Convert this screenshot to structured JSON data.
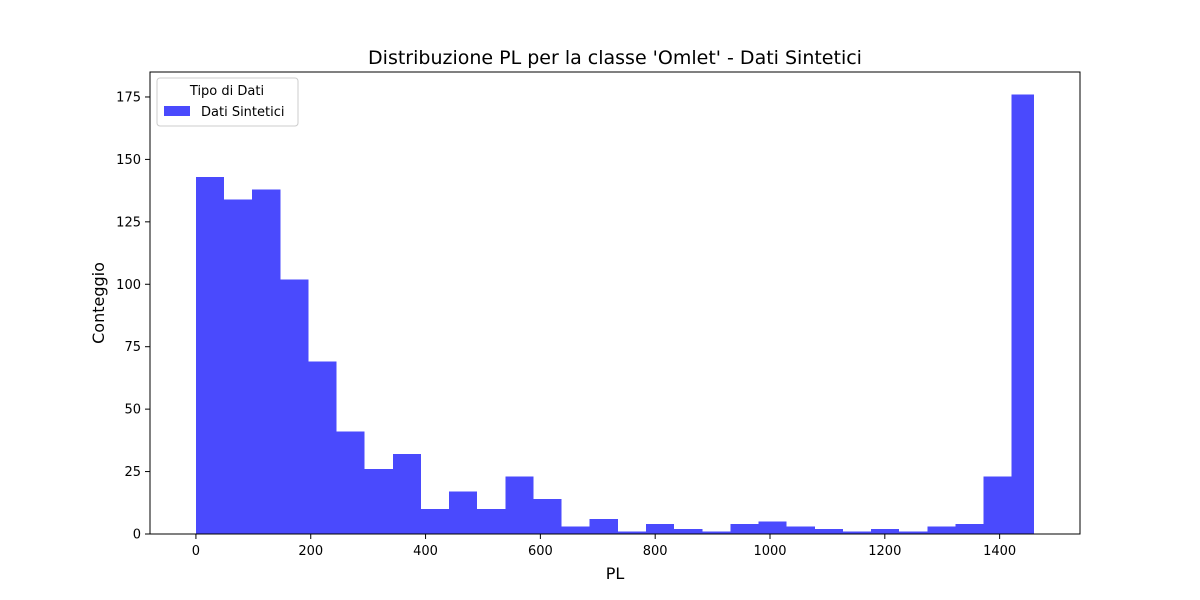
{
  "chart_data": {
    "type": "bar",
    "title": "Distribuzione PL per la classe 'Omlet' - Dati Sintetici",
    "xlabel": "PL",
    "ylabel": "Conteggio",
    "xlim": [
      -80,
      1540
    ],
    "ylim": [
      0,
      185
    ],
    "x_ticks": [
      0,
      200,
      400,
      600,
      800,
      1000,
      1200,
      1400
    ],
    "y_ticks": [
      0,
      25,
      50,
      75,
      100,
      125,
      150,
      175
    ],
    "grid": false,
    "legend": {
      "title": "Tipo di Dati",
      "placement": "top-left"
    },
    "series": [
      {
        "name": "Dati Sintetici",
        "color": "#4a4afd",
        "bin_edges": [
          0,
          49,
          98,
          147,
          196,
          245,
          294,
          343,
          392,
          441,
          490,
          539,
          588,
          637,
          686,
          735,
          784,
          833,
          882,
          931,
          980,
          1029,
          1078,
          1127,
          1176,
          1225,
          1274,
          1323,
          1372,
          1421,
          1460
        ],
        "counts": [
          143,
          134,
          138,
          102,
          69,
          41,
          26,
          32,
          10,
          17,
          10,
          23,
          14,
          3,
          6,
          1,
          4,
          2,
          1,
          4,
          5,
          3,
          2,
          1,
          2,
          1,
          3,
          4,
          23,
          176
        ]
      }
    ]
  }
}
